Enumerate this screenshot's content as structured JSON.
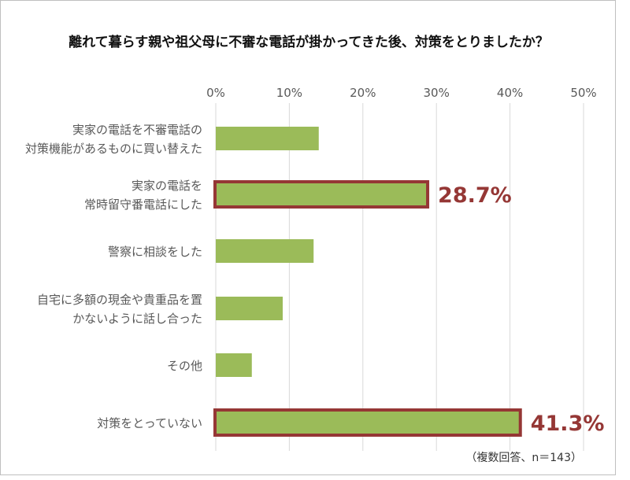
{
  "chart_data": {
    "type": "bar",
    "orientation": "horizontal",
    "title": "離れて暮らす親や祖父母に不審な電話が掛かってきた後、対策をとりましたか？",
    "x_ticks": [
      "0%",
      "10%",
      "20%",
      "30%",
      "40%",
      "50%"
    ],
    "xlim": [
      0,
      50
    ],
    "grid": true,
    "categories": [
      [
        "実家の電話を不審電話の",
        "対策機能があるものに買い替えた"
      ],
      [
        "実家の電話を",
        "常時留守番電話にした"
      ],
      [
        "警察に相談をした"
      ],
      [
        "自宅に多額の現金や貴重品を置",
        "かないように話し合った"
      ],
      [
        "その他"
      ],
      [
        "対策をとっていない"
      ]
    ],
    "values": [
      14.0,
      28.7,
      13.3,
      9.1,
      4.9,
      41.3
    ],
    "highlighted": [
      {
        "index": 1,
        "label": "28.7%"
      },
      {
        "index": 5,
        "label": "41.3%"
      }
    ],
    "note": "（複数回答、n＝143）",
    "colors": {
      "bar": "#9bbb59",
      "highlight_border": "#953735",
      "highlight_text": "#953735",
      "gridline": "#d9d9d9"
    }
  }
}
